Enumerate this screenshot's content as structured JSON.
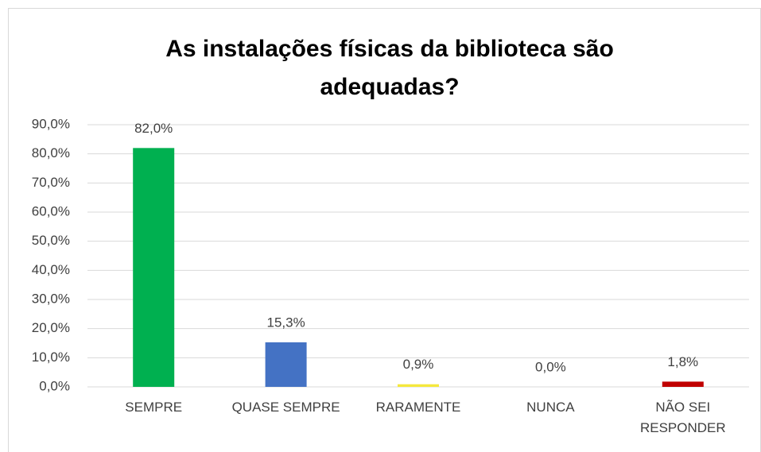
{
  "chart_data": {
    "type": "bar",
    "title": "As instalações físicas da biblioteca são adequadas?",
    "categories": [
      "SEMPRE",
      "QUASE SEMPRE",
      "RARAMENTE",
      "NUNCA",
      "NÃO SEI RESPONDER"
    ],
    "values": [
      82.0,
      15.3,
      0.9,
      0.0,
      1.8
    ],
    "value_labels": [
      "82,0%",
      "15,3%",
      "0,9%",
      "0,0%",
      "1,8%"
    ],
    "colors": [
      "#00b050",
      "#4472c4",
      "#f5e83c",
      null,
      "#c00000"
    ],
    "ylim": [
      0,
      90
    ],
    "yticks": [
      {
        "value": 0,
        "label": "0,0%"
      },
      {
        "value": 10,
        "label": "10,0%"
      },
      {
        "value": 20,
        "label": "20,0%"
      },
      {
        "value": 30,
        "label": "30,0%"
      },
      {
        "value": 40,
        "label": "40,0%"
      },
      {
        "value": 50,
        "label": "50,0%"
      },
      {
        "value": 60,
        "label": "60,0%"
      },
      {
        "value": 70,
        "label": "70,0%"
      },
      {
        "value": 80,
        "label": "80,0%"
      },
      {
        "value": 90,
        "label": "90,0%"
      }
    ],
    "grid": true
  }
}
